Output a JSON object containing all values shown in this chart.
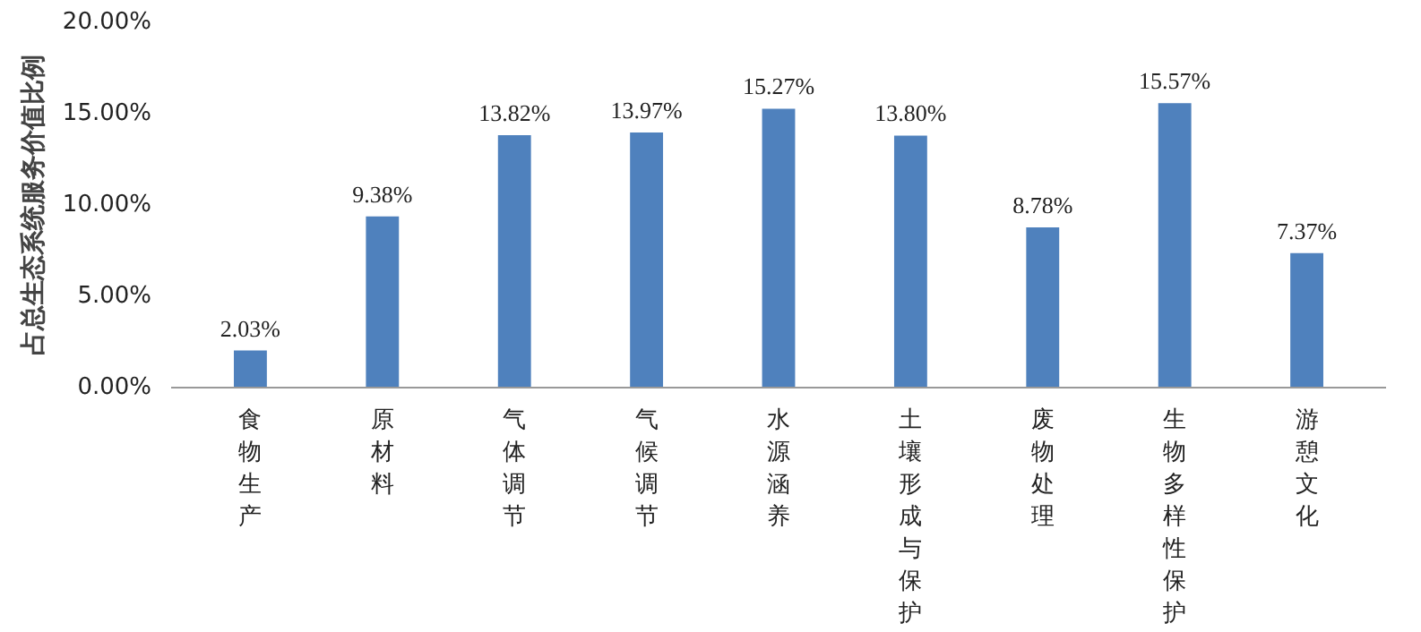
{
  "chart_data": {
    "type": "bar",
    "ylabel": "占总生态系统服务价值比例",
    "categories": [
      "食物生产",
      "原材料",
      "气体调节",
      "气候调节",
      "水源涵养",
      "土壤形成与保护",
      "废物处理",
      "生物多样性保护",
      "游憩文化"
    ],
    "values": [
      2.03,
      9.38,
      13.82,
      13.97,
      15.27,
      13.8,
      8.78,
      15.57,
      7.37
    ],
    "value_labels": [
      "2.03%",
      "9.38%",
      "13.82%",
      "13.97%",
      "15.27%",
      "13.80%",
      "8.78%",
      "15.57%",
      "7.37%"
    ],
    "color": "#4f81bd",
    "ylim": [
      0,
      20
    ],
    "yticks": [
      {
        "value": 0,
        "label": "0.00%"
      },
      {
        "value": 5,
        "label": "5.00%"
      },
      {
        "value": 10,
        "label": "10.00%"
      },
      {
        "value": 15,
        "label": "15.00%"
      },
      {
        "value": 20,
        "label": "20.00%"
      }
    ],
    "grid": false
  }
}
